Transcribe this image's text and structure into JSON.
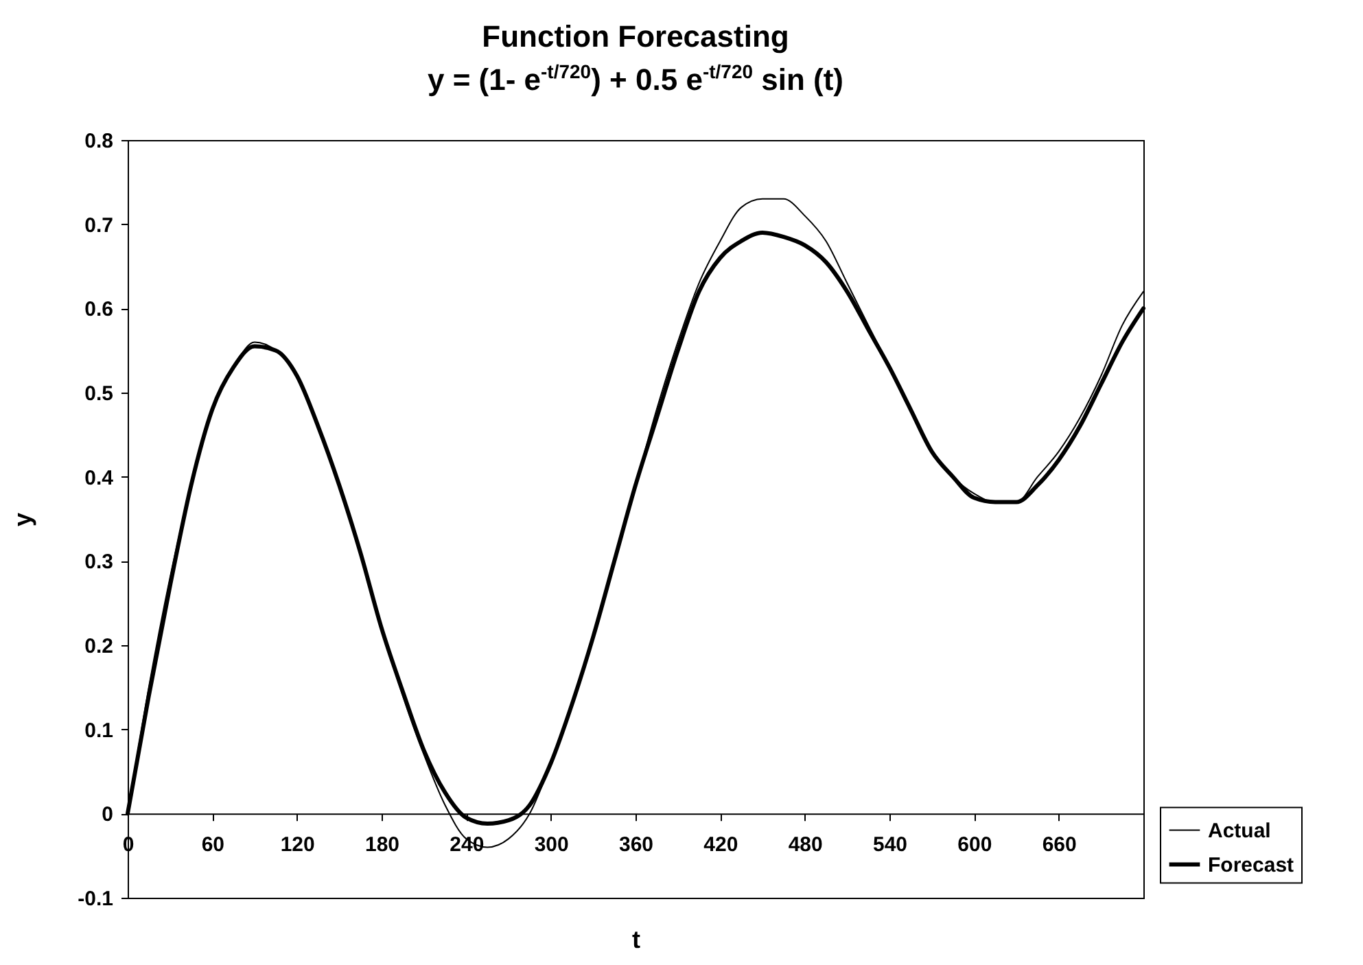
{
  "chart_data": {
    "type": "line",
    "title": "Function Forecasting",
    "subtitle": "y = (1- e$^{-t/720}$) + 0.5 e$^{-t/720}$ sin (t)",
    "xlabel": "t",
    "ylabel": "y",
    "x": [
      0,
      15,
      30,
      45,
      60,
      75,
      90,
      105,
      120,
      135,
      150,
      165,
      180,
      195,
      210,
      225,
      240,
      255,
      270,
      285,
      300,
      315,
      330,
      345,
      360,
      375,
      390,
      405,
      420,
      435,
      450,
      465,
      480,
      495,
      510,
      525,
      540,
      555,
      570,
      585,
      600,
      615,
      630,
      645,
      660,
      675,
      690,
      705,
      720
    ],
    "series": [
      {
        "name": "Actual",
        "color": "#000000",
        "values": [
          0,
          0.15,
          0.28,
          0.39,
          0.48,
          0.53,
          0.56,
          0.55,
          0.52,
          0.46,
          0.39,
          0.31,
          0.22,
          0.14,
          0.07,
          0.01,
          -0.03,
          -0.04,
          -0.03,
          0,
          0.06,
          0.13,
          0.21,
          0.3,
          0.39,
          0.48,
          0.56,
          0.63,
          0.68,
          0.72,
          0.73,
          0.73,
          0.71,
          0.68,
          0.63,
          0.58,
          0.53,
          0.48,
          0.43,
          0.4,
          0.38,
          0.37,
          0.37,
          0.4,
          0.43,
          0.47,
          0.52,
          0.58,
          0.62
        ]
      },
      {
        "name": "Forecast",
        "color": "#000000",
        "values": [
          0,
          0.14,
          0.27,
          0.39,
          0.48,
          0.53,
          0.555,
          0.55,
          0.52,
          0.46,
          0.39,
          0.31,
          0.22,
          0.145,
          0.075,
          0.025,
          -0.005,
          -0.012,
          -0.008,
          0.01,
          0.06,
          0.13,
          0.21,
          0.3,
          0.39,
          0.47,
          0.55,
          0.62,
          0.66,
          0.68,
          0.69,
          0.685,
          0.675,
          0.655,
          0.62,
          0.575,
          0.53,
          0.48,
          0.43,
          0.4,
          0.375,
          0.37,
          0.37,
          0.39,
          0.42,
          0.46,
          0.51,
          0.56,
          0.6
        ]
      }
    ],
    "xlim": [
      0,
      720
    ],
    "xticks": [
      0,
      60,
      120,
      180,
      240,
      300,
      360,
      420,
      480,
      540,
      600,
      660
    ],
    "ylim": [
      -0.1,
      0.8
    ],
    "yticks": [
      -0.1,
      0,
      0.1,
      0.2,
      0.3,
      0.4,
      0.5,
      0.6,
      0.7,
      0.8
    ],
    "grid": false,
    "legend": "right",
    "marker": "none",
    "line_style": "solid"
  }
}
